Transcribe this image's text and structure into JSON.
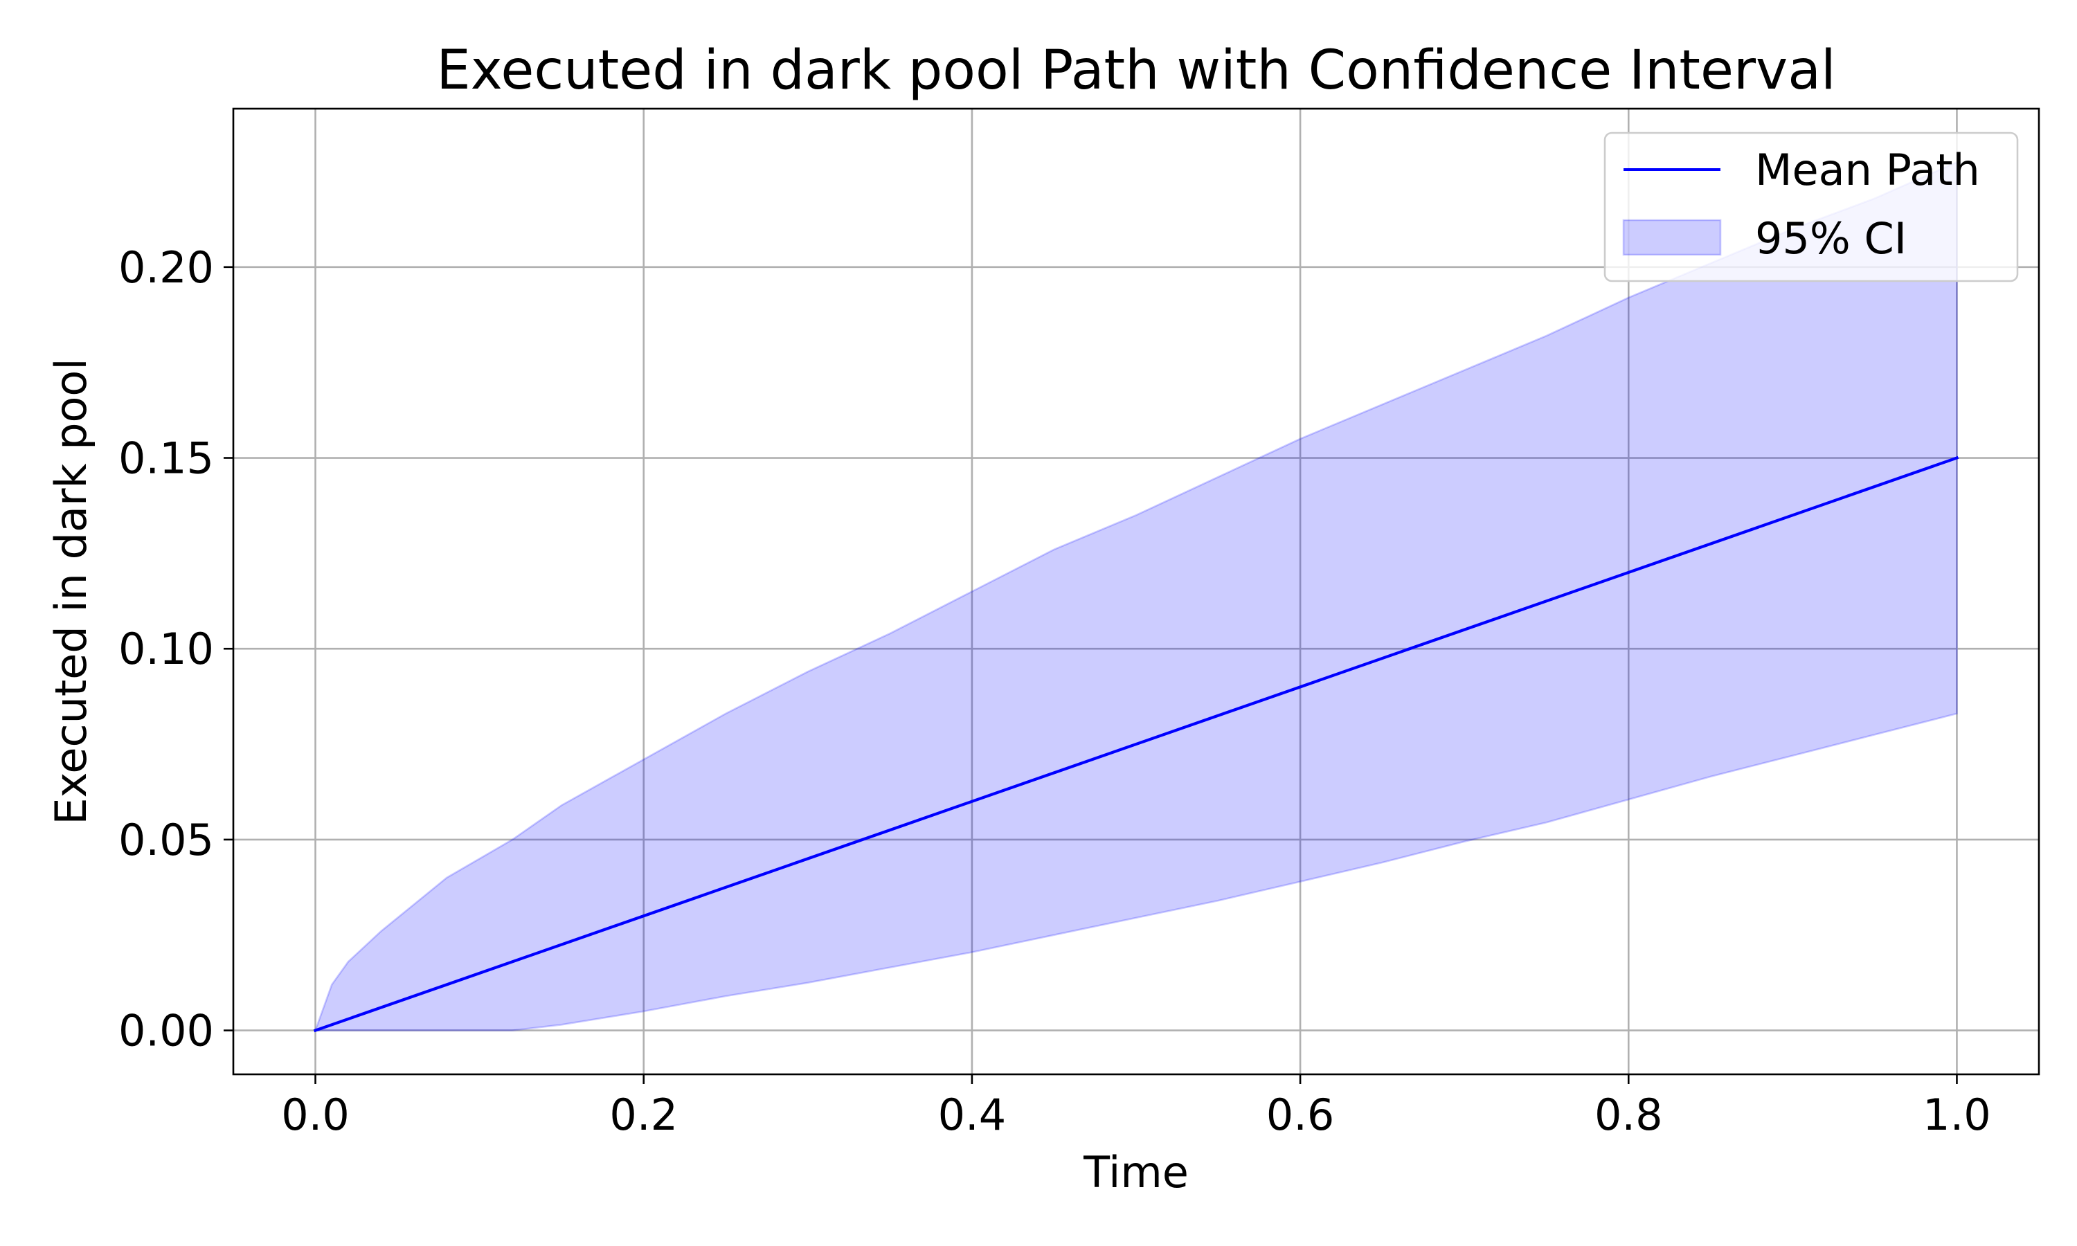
{
  "chart_data": {
    "type": "line",
    "title": "Executed in dark pool Path with Confidence Interval",
    "xlabel": "Time",
    "ylabel": "Executed in dark pool",
    "xlim": [
      -0.05,
      1.05
    ],
    "ylim": [
      -0.0115,
      0.2415
    ],
    "xticks": [
      0.0,
      0.2,
      0.4,
      0.6,
      0.8,
      1.0
    ],
    "xtick_labels": [
      "0.0",
      "0.2",
      "0.4",
      "0.6",
      "0.8",
      "1.0"
    ],
    "yticks": [
      0.0,
      0.05,
      0.1,
      0.15,
      0.2
    ],
    "ytick_labels": [
      "0.00",
      "0.05",
      "0.10",
      "0.15",
      "0.20"
    ],
    "grid": true,
    "legend": "top-right",
    "series": [
      {
        "name": "Mean Path",
        "kind": "line",
        "color": "#0000ff",
        "x": [
          0.0,
          1.0
        ],
        "y": [
          0.0,
          0.15
        ]
      },
      {
        "name": "95% CI",
        "kind": "band",
        "color": "#0000ff",
        "opacity": 0.2,
        "x": [
          0.0,
          0.01,
          0.02,
          0.04,
          0.06,
          0.08,
          0.1,
          0.12,
          0.15,
          0.2,
          0.25,
          0.3,
          0.35,
          0.4,
          0.45,
          0.5,
          0.55,
          0.6,
          0.65,
          0.7,
          0.75,
          0.8,
          0.85,
          0.9,
          0.95,
          1.0
        ],
        "lower": [
          0.0,
          0.0,
          0.0,
          0.0,
          0.0,
          0.0,
          0.0,
          0.0,
          0.0015,
          0.005,
          0.009,
          0.0125,
          0.0165,
          0.0205,
          0.025,
          0.0295,
          0.034,
          0.039,
          0.044,
          0.0495,
          0.0545,
          0.0605,
          0.0665,
          0.072,
          0.0775,
          0.083
        ],
        "upper": [
          0.0,
          0.012,
          0.018,
          0.026,
          0.033,
          0.04,
          0.045,
          0.05,
          0.059,
          0.071,
          0.083,
          0.094,
          0.104,
          0.115,
          0.126,
          0.135,
          0.145,
          0.155,
          0.164,
          0.173,
          0.182,
          0.192,
          0.201,
          0.21,
          0.218,
          0.2275
        ]
      }
    ]
  }
}
